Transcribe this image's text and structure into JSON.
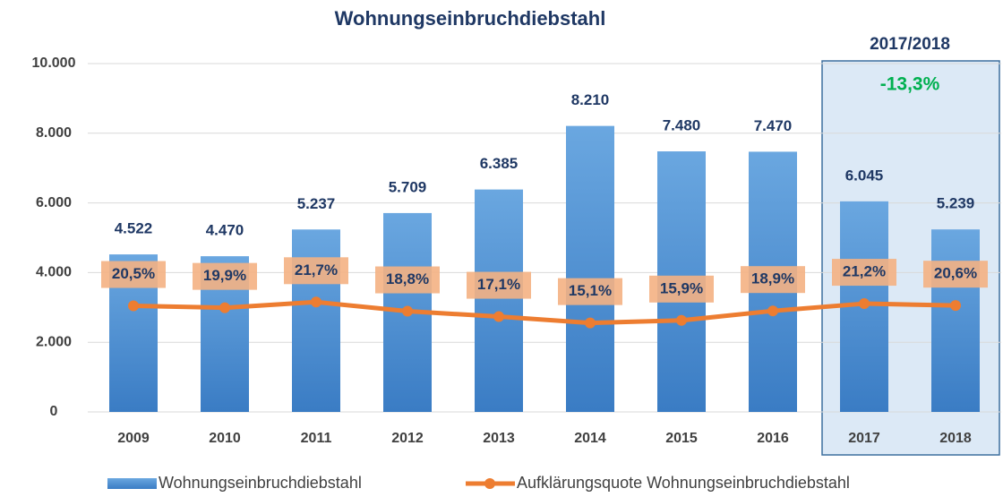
{
  "chart_data": {
    "type": "bar_line",
    "title": "Wohnungseinbruchdiebstahl",
    "categories": [
      "2009",
      "2010",
      "2011",
      "2012",
      "2013",
      "2014",
      "2015",
      "2016",
      "2017",
      "2018"
    ],
    "series": [
      {
        "name": "Wohnungseinbruchdiebstahl",
        "type": "bar",
        "color": "#4a8fd4",
        "values": [
          4522,
          4470,
          5237,
          5709,
          6385,
          8210,
          7480,
          7470,
          6045,
          5239
        ],
        "value_labels": [
          "4.522",
          "4.470",
          "5.237",
          "5.709",
          "6.385",
          "8.210",
          "7.480",
          "7.470",
          "6.045",
          "5.239"
        ]
      },
      {
        "name": "Aufklärungsquote Wohnungseinbruchdiebstahl",
        "type": "line",
        "axis": "y2",
        "color": "#ed7d31",
        "values": [
          20.5,
          19.9,
          21.7,
          18.8,
          17.1,
          15.1,
          15.9,
          18.9,
          21.2,
          20.6
        ],
        "value_labels": [
          "20,5%",
          "19,9%",
          "21,7%",
          "18,8%",
          "17,1%",
          "15,1%",
          "15,9%",
          "18,9%",
          "21,2%",
          "20,6%"
        ]
      }
    ],
    "ylim": [
      0,
      10000
    ],
    "yticks": [
      0,
      {
        "value": 2000,
        "label": "2.000"
      },
      {
        "value": 4000,
        "label": "4.000"
      },
      {
        "value": 6000,
        "label": "6.000"
      },
      {
        "value": 8000,
        "label": "8.000"
      },
      {
        "value": 10000,
        "label": "10.000"
      }
    ],
    "y2lim": [
      -13,
      97
    ],
    "grid": true,
    "legend": "bottom",
    "annotations": [
      {
        "text": "2017/2018",
        "color": "#1f3864"
      },
      {
        "text": "-13,3%",
        "color": "#00b050"
      }
    ]
  }
}
